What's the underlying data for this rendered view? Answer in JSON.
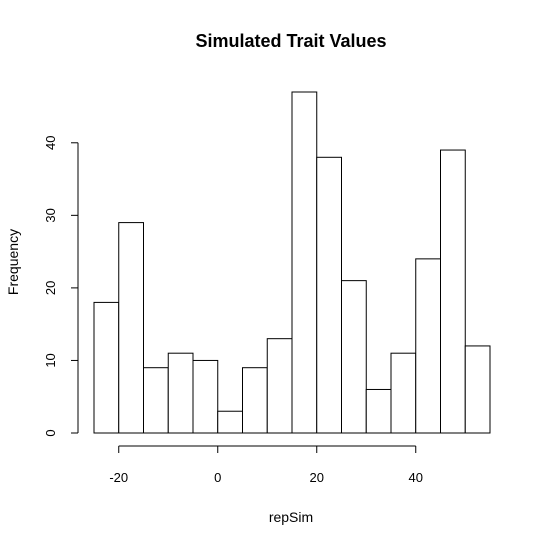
{
  "chart_data": {
    "type": "bar",
    "title": "Simulated Trait Values",
    "xlabel": "repSim",
    "ylabel": "Frequency",
    "bin_edges": [
      -25,
      -20,
      -15,
      -10,
      -5,
      0,
      5,
      10,
      15,
      20,
      25,
      30,
      35,
      40,
      45,
      50,
      55
    ],
    "values": [
      18,
      29,
      9,
      11,
      10,
      3,
      9,
      13,
      47,
      38,
      21,
      6,
      11,
      24,
      39,
      12
    ],
    "xlim": [
      -25,
      55
    ],
    "ylim": [
      0,
      47
    ],
    "x_ticks": [
      -20,
      0,
      20,
      40
    ],
    "y_ticks": [
      0,
      10,
      20,
      30,
      40
    ],
    "grid": false,
    "legend": "none"
  }
}
